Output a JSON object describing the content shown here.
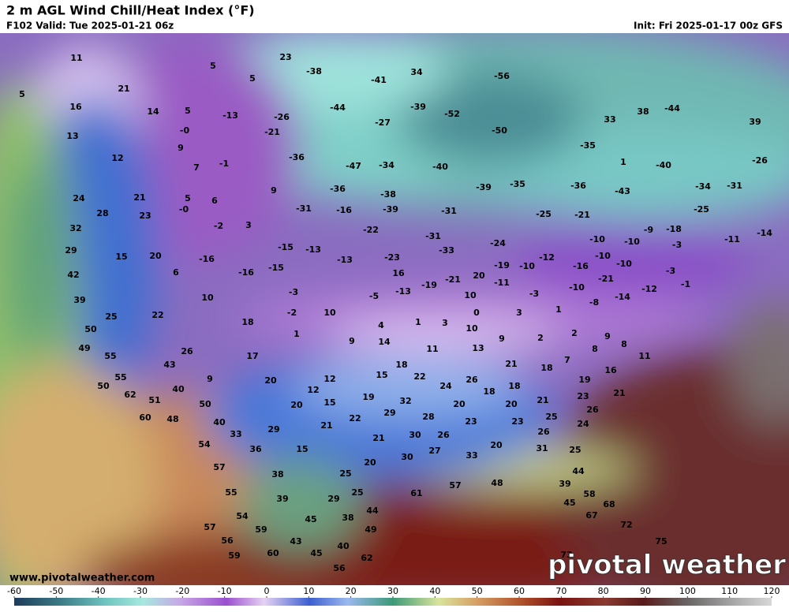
{
  "header": {
    "title": "2 m AGL Wind Chill/Heat Index (°F)",
    "valid": "F102 Valid: Tue 2025-01-21 06z",
    "init": "Init: Fri 2025-01-17 00z GFS"
  },
  "footer": {
    "url": "www.pivotalweather.com",
    "logo": "pivotal weather"
  },
  "colorbar": {
    "lim": [
      -60,
      120
    ],
    "ticks": [
      -60,
      -50,
      -40,
      -30,
      -20,
      -10,
      0,
      10,
      20,
      30,
      40,
      50,
      60,
      70,
      80,
      90,
      100,
      110,
      120
    ]
  },
  "stations": [
    11,
    5,
    23,
    -38,
    34,
    -41,
    5,
    -56,
    21,
    5,
    16,
    14,
    5,
    -13,
    -26,
    -44,
    -39,
    -52,
    33,
    38,
    -44,
    39,
    -27,
    13,
    {
      "value": 0,
      "label": "-0"
    },
    -21,
    -50,
    -35,
    9,
    12,
    -36,
    -47,
    -34,
    -40,
    -40,
    -26,
    7,
    -1,
    1,
    -35,
    -39,
    -36,
    -43,
    -34,
    -31,
    9,
    -36,
    -38,
    21,
    5,
    24,
    6,
    28,
    23,
    {
      "value": 0,
      "label": "-0"
    },
    -31,
    -16,
    -39,
    -31,
    -25,
    -21,
    -25,
    32,
    -2,
    3,
    -22,
    -9,
    -18,
    -11,
    -14,
    -31,
    -24,
    -10,
    -10,
    -3,
    29,
    15,
    20,
    -16,
    -15,
    -13,
    -13,
    -23,
    -33,
    -19,
    -10,
    -12,
    -10,
    -10,
    -16,
    42,
    6,
    -16,
    -15,
    16,
    -21,
    -19,
    20,
    -11,
    -21,
    -3,
    -1,
    39,
    10,
    -3,
    -5,
    -13,
    10,
    -3,
    -10,
    -14,
    -8,
    -12,
    25,
    22,
    18,
    -2,
    10,
    4,
    1,
    3,
    0,
    3,
    1,
    10,
    50,
    1,
    9,
    14,
    9,
    2,
    2,
    9,
    8,
    49,
    26,
    17,
    11,
    13,
    8,
    11,
    55,
    43,
    21,
    18,
    7,
    18,
    16,
    55,
    9,
    20,
    12,
    15,
    22,
    26,
    19,
    24,
    18,
    12,
    50,
    62,
    40,
    51,
    19,
    32,
    21,
    23,
    21,
    18,
    20,
    20,
    50,
    20,
    15,
    29,
    28,
    23,
    23,
    25,
    26,
    60,
    48,
    22,
    40,
    29,
    21,
    33,
    30,
    26,
    26,
    24,
    54,
    21,
    36,
    15,
    27,
    33,
    20,
    31,
    25,
    57,
    38,
    20,
    30,
    25,
    44,
    57,
    48,
    39,
    55,
    25,
    29,
    39,
    61,
    58,
    45,
    68,
    44,
    54,
    45,
    38,
    67,
    59,
    49,
    72,
    57,
    56,
    43,
    40,
    75,
    59,
    60,
    45,
    62,
    73,
    56
  ]
}
